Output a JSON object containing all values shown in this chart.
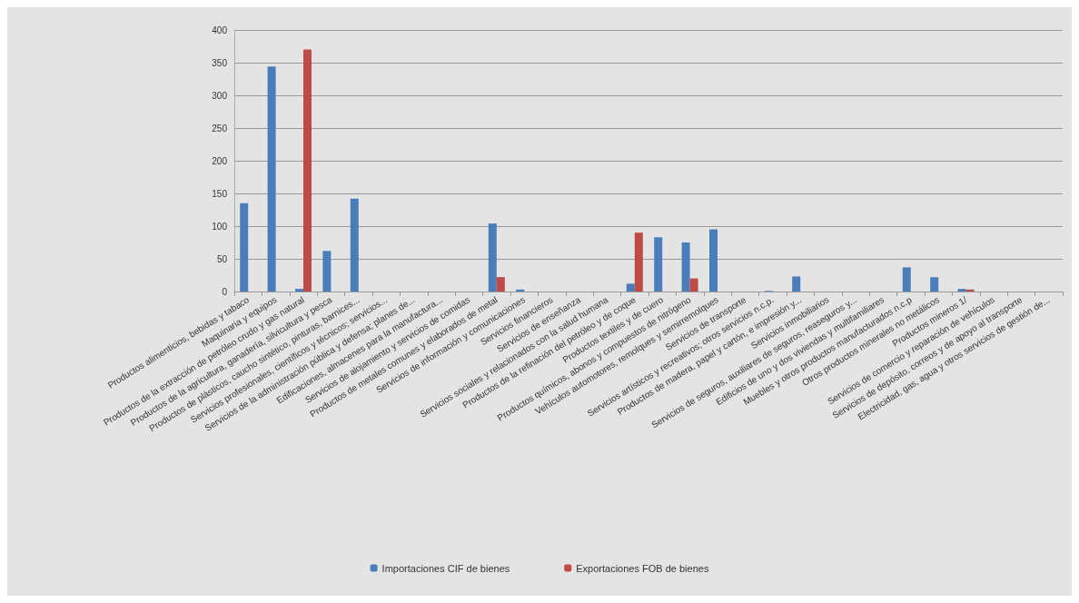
{
  "chart_data": {
    "type": "bar",
    "categories": [
      "Productos alimenticios, bebidas y tabaco",
      "Maquinaria y equipos",
      "Productos de la extracción de petróleo crudo y gas natural",
      "Productos de la agricultura, ganadería, silvicultura y pesca",
      "Productos de plásticos, caucho sintético, pinturas, barnices...",
      "Servicios profesionales, científicos y técnicos; servicios...",
      "Servicios de la administración pública y defensa; planes de...",
      "Edificaciones, almacenes para la manufactura...",
      "Servicios de alojamiento y servicios de comidas",
      "Productos de metales comunes y elaborados de metal",
      "Servicios de información y comunicaciones",
      "Servicios financieros",
      "Servicios de enseñanza",
      "Servicios sociales y relacionados con la salud humana",
      "Productos de la refinación del petróleo y de coque",
      "Productos textiles y de cuero",
      "Productos químicos, abonos y compuestos de nitrógeno",
      "Vehículos automotores, remolques y semirremolques",
      "Servicios de transporte",
      "Servicios artísticos y recreativos; otros servicios n.c.p.",
      "Productos de madera, papel y cartón, e impresión y...",
      "Servicios inmobiliarios",
      "Servicios de seguros, auxiliares de seguros, reaseguros y...",
      "Edificios de uno y dos viviendas y multifamiliares",
      "Muebles y otros productos manufacturados n.c.p",
      "Otros productos minerales no metálicos",
      "Productos mineros 1/",
      "Servicios de comercio y reparación de vehículos",
      "Servicios de depósito, correos y de apoyo al transporte",
      "Electricidad, gas, agua y otros servicios de gestión de..."
    ],
    "series": [
      {
        "name": "Importaciones CIF de bienes",
        "color": "#4a7ebb",
        "values": [
          135,
          344,
          4,
          62,
          142,
          0,
          0,
          0,
          0,
          104,
          3,
          0,
          0,
          0,
          12,
          83,
          75,
          95,
          0,
          1,
          23,
          0,
          0,
          0,
          37,
          22,
          4,
          0,
          0,
          0
        ]
      },
      {
        "name": "Exportaciones FOB de bienes",
        "color": "#be4b48",
        "values": [
          0,
          0,
          370,
          0,
          0,
          0,
          0,
          0,
          0,
          22,
          0,
          0,
          0,
          0,
          90,
          0,
          20,
          0,
          0,
          0,
          0,
          0,
          0,
          0,
          0,
          0,
          3,
          0,
          0,
          0
        ]
      }
    ],
    "ylim": [
      0,
      400
    ],
    "yticks": [
      0,
      50,
      100,
      150,
      200,
      250,
      300,
      350,
      400
    ],
    "grid": "y",
    "legend": "bottom"
  }
}
